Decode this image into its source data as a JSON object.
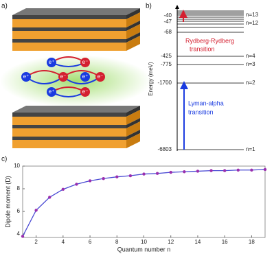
{
  "panel_a": {
    "label": "a)",
    "particles": [
      "e⁺",
      "e⁻",
      "e⁺",
      "e⁻",
      "e⁺",
      "e⁻",
      "e⁺",
      "e⁻"
    ]
  },
  "panel_b": {
    "label": "b)",
    "axis_label": "Energy (meV)",
    "energies": [
      "-40",
      "-47",
      "-68",
      "-425",
      "-775",
      "-1700",
      "-6803"
    ],
    "states": [
      "n=13",
      "n=12",
      "n=4",
      "n=3",
      "n=2",
      "n=1"
    ],
    "rydberg": [
      "Rydberg-Rydberg",
      "transition"
    ],
    "lyman": [
      "Lyman-alpha",
      "transition"
    ]
  },
  "chart_data": {
    "type": "line",
    "panel_label": "c)",
    "x_label": "Quantum number n",
    "y_label": "Dipole moment (D)",
    "x": [
      1,
      2,
      3,
      4,
      5,
      6,
      7,
      8,
      9,
      10,
      11,
      12,
      13,
      14,
      15,
      16,
      17,
      18,
      19
    ],
    "series": [
      {
        "color": "#4a4ad4",
        "marker_color": "#9a2fae",
        "values": [
          3.8,
          6.1,
          7.25,
          7.95,
          8.4,
          8.7,
          8.9,
          9.05,
          9.15,
          9.3,
          9.35,
          9.45,
          9.5,
          9.55,
          9.6,
          9.6,
          9.65,
          9.65,
          9.7
        ]
      }
    ],
    "xlim": [
      1,
      19
    ],
    "ylim": [
      3.7,
      10
    ],
    "xticks": [
      2,
      4,
      6,
      8,
      10,
      12,
      14,
      16,
      18
    ],
    "yticks": [
      4,
      6,
      8,
      10
    ]
  }
}
